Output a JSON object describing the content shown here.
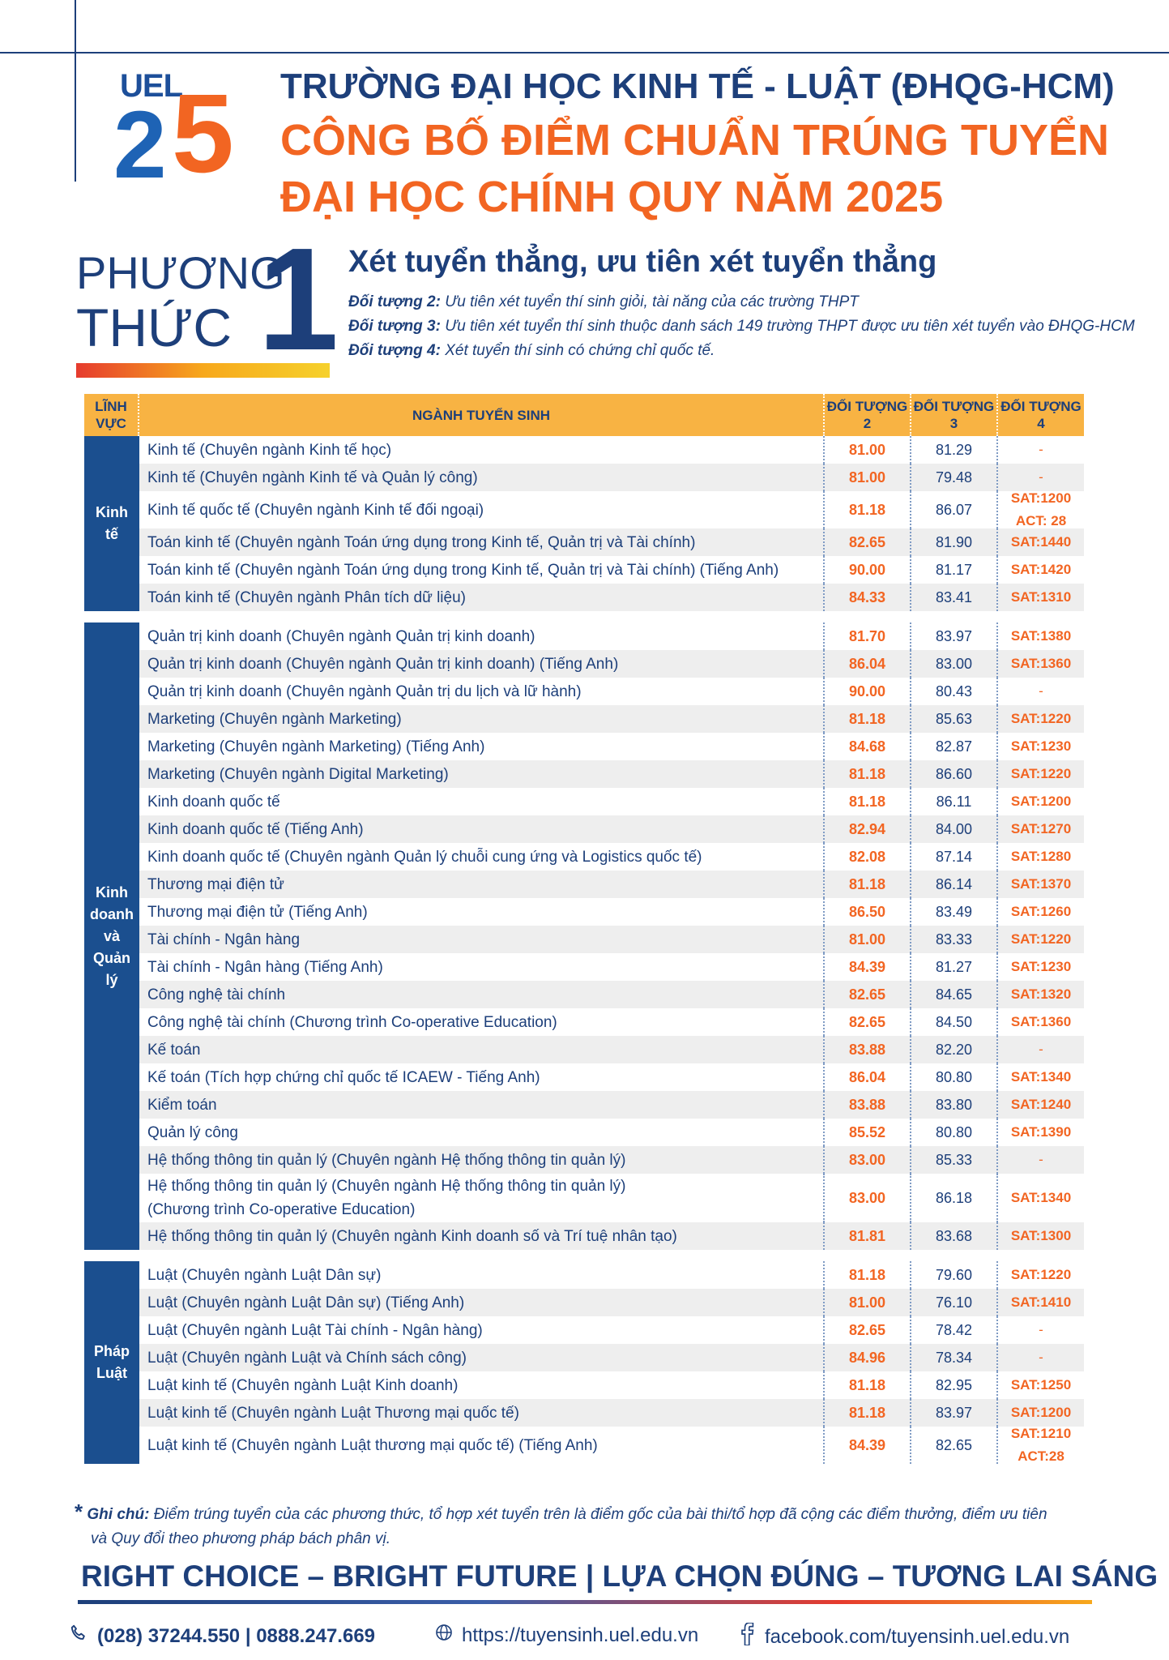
{
  "logo": {
    "text": "UEL",
    "digit_two": "2",
    "digit_five": "5"
  },
  "header": {
    "school_name": "TRƯỜNG ĐẠI HỌC KINH TẾ - LUẬT (ĐHQG-HCM)",
    "announce_line1": "CÔNG BỐ ĐIỂM CHUẨN TRÚNG TUYỂN",
    "announce_line2": "ĐẠI HỌC CHÍNH QUY NĂM 2025"
  },
  "method": {
    "word1": "PHƯƠNG",
    "word2": "THỨC",
    "number": "1",
    "title": "Xét tuyển thẳng, ưu tiên xét tuyển thẳng",
    "objects": [
      {
        "label": "Đối tượng 2:",
        "text": " Ưu tiên xét tuyển thí sinh giỏi, tài năng của các trường THPT"
      },
      {
        "label": "Đối tượng 3:",
        "text": " Ưu tiên xét tuyển thí sinh thuộc danh sách 149 trường THPT được ưu tiên xét tuyển vào ĐHQG-HCM"
      },
      {
        "label": "Đối tượng 4:",
        "text": " Xét tuyển thí sinh có chứng chỉ quốc tế."
      }
    ]
  },
  "table": {
    "headers": {
      "field": "LĨNH VỰC",
      "name": "NGÀNH TUYỂN SINH",
      "o2": "ĐỐI TƯỢNG 2",
      "o3": "ĐỐI TƯỢNG 3",
      "o4": "ĐỐI TƯỢNG 4"
    },
    "groups": [
      {
        "field": "Kinh tế",
        "rows": [
          {
            "name": "Kinh tế (Chuyên ngành Kinh tế học)",
            "o2": "81.00",
            "o3": "81.29",
            "o4": "-"
          },
          {
            "name": "Kinh tế (Chuyên ngành Kinh tế và Quản lý công)",
            "o2": "81.00",
            "o3": "79.48",
            "o4": "-"
          },
          {
            "name": "Kinh tế quốc tế (Chuyên ngành Kinh tế đối ngoại)",
            "o2": "81.18",
            "o3": "86.07",
            "o4": "SAT:1200\nACT: 28",
            "size": "tall"
          },
          {
            "name": "Toán kinh tế (Chuyên ngành Toán ứng dụng trong Kinh tế, Quản trị và Tài chính)",
            "o2": "82.65",
            "o3": "81.90",
            "o4": "SAT:1440"
          },
          {
            "name": "Toán kinh tế (Chuyên ngành Toán ứng dụng trong Kinh tế, Quản trị và Tài chính) (Tiếng Anh)",
            "o2": "90.00",
            "o3": "81.17",
            "o4": "SAT:1420"
          },
          {
            "name": "Toán kinh tế (Chuyên ngành Phân tích dữ liệu)",
            "o2": "84.33",
            "o3": "83.41",
            "o4": "SAT:1310"
          }
        ]
      },
      {
        "field": "Kinh doanh và Quản lý",
        "rows": [
          {
            "name": "Quản trị kinh doanh (Chuyên ngành Quản trị kinh doanh)",
            "o2": "81.70",
            "o3": "83.97",
            "o4": "SAT:1380"
          },
          {
            "name": "Quản trị kinh doanh (Chuyên ngành Quản trị kinh doanh) (Tiếng Anh)",
            "o2": "86.04",
            "o3": "83.00",
            "o4": "SAT:1360"
          },
          {
            "name": "Quản trị kinh doanh (Chuyên ngành Quản trị du lịch và lữ hành)",
            "o2": "90.00",
            "o3": "80.43",
            "o4": "-"
          },
          {
            "name": "Marketing (Chuyên ngành Marketing)",
            "o2": "81.18",
            "o3": "85.63",
            "o4": "SAT:1220"
          },
          {
            "name": "Marketing (Chuyên ngành Marketing) (Tiếng Anh)",
            "o2": "84.68",
            "o3": "82.87",
            "o4": "SAT:1230"
          },
          {
            "name": "Marketing (Chuyên ngành Digital Marketing)",
            "o2": "81.18",
            "o3": "86.60",
            "o4": "SAT:1220"
          },
          {
            "name": "Kinh doanh quốc tế",
            "o2": "81.18",
            "o3": "86.11",
            "o4": "SAT:1200"
          },
          {
            "name": "Kinh doanh quốc tế (Tiếng Anh)",
            "o2": "82.94",
            "o3": "84.00",
            "o4": "SAT:1270"
          },
          {
            "name": "Kinh doanh quốc tế (Chuyên ngành Quản lý chuỗi cung ứng và Logistics quốc tế)",
            "o2": "82.08",
            "o3": "87.14",
            "o4": "SAT:1280"
          },
          {
            "name": "Thương mại điện tử",
            "o2": "81.18",
            "o3": "86.14",
            "o4": "SAT:1370"
          },
          {
            "name": "Thương mại điện tử (Tiếng Anh)",
            "o2": "86.50",
            "o3": "83.49",
            "o4": "SAT:1260"
          },
          {
            "name": "Tài chính - Ngân hàng",
            "o2": "81.00",
            "o3": "83.33",
            "o4": "SAT:1220"
          },
          {
            "name": "Tài chính - Ngân hàng (Tiếng Anh)",
            "o2": "84.39",
            "o3": "81.27",
            "o4": "SAT:1230"
          },
          {
            "name": "Công nghệ tài chính",
            "o2": "82.65",
            "o3": "84.65",
            "o4": "SAT:1320"
          },
          {
            "name": "Công nghệ tài chính (Chương trình Co-operative Education)",
            "o2": "82.65",
            "o3": "84.50",
            "o4": "SAT:1360"
          },
          {
            "name": "Kế toán",
            "o2": "83.88",
            "o3": "82.20",
            "o4": "-"
          },
          {
            "name": "Kế toán (Tích hợp chứng chỉ quốc tế ICAEW - Tiếng Anh)",
            "o2": "86.04",
            "o3": "80.80",
            "o4": "SAT:1340"
          },
          {
            "name": "Kiểm toán",
            "o2": "83.88",
            "o3": "83.80",
            "o4": "SAT:1240"
          },
          {
            "name": "Quản lý công",
            "o2": "85.52",
            "o3": "80.80",
            "o4": "SAT:1390"
          },
          {
            "name": "Hệ thống thông tin quản lý (Chuyên ngành Hệ thống thông tin quản lý)",
            "o2": "83.00",
            "o3": "85.33",
            "o4": "-"
          },
          {
            "name": "Hệ thống thông tin quản lý (Chuyên ngành Hệ thống thông tin quản lý)\n(Chương trình Co-operative Education)",
            "o2": "83.00",
            "o3": "86.18",
            "o4": "SAT:1340",
            "size": "xtall"
          },
          {
            "name": "Hệ thống thông tin quản lý (Chuyên ngành Kinh doanh số và Trí tuệ nhân tạo)",
            "o2": "81.81",
            "o3": "83.68",
            "o4": "SAT:1300"
          }
        ]
      },
      {
        "field": "Pháp Luật",
        "rows": [
          {
            "name": "Luật (Chuyên ngành Luật Dân sự)",
            "o2": "81.18",
            "o3": "79.60",
            "o4": "SAT:1220"
          },
          {
            "name": "Luật (Chuyên ngành Luật Dân sự) (Tiếng Anh)",
            "o2": "81.00",
            "o3": "76.10",
            "o4": "SAT:1410"
          },
          {
            "name": "Luật (Chuyên ngành Luật Tài chính - Ngân hàng)",
            "o2": "82.65",
            "o3": "78.42",
            "o4": "-"
          },
          {
            "name": "Luật (Chuyên ngành Luật và Chính sách công)",
            "o2": "84.96",
            "o3": "78.34",
            "o4": "-"
          },
          {
            "name": "Luật kinh tế (Chuyên ngành Luật Kinh doanh)",
            "o2": "81.18",
            "o3": "82.95",
            "o4": "SAT:1250"
          },
          {
            "name": "Luật kinh tế (Chuyên ngành Luật Thương mại quốc tế)",
            "o2": "81.18",
            "o3": "83.97",
            "o4": "SAT:1200"
          },
          {
            "name": "Luật kinh tế (Chuyên ngành Luật thương mại quốc tế) (Tiếng Anh)",
            "o2": "84.39",
            "o3": "82.65",
            "o4": "SAT:1210\nACT:28",
            "size": "tall"
          }
        ]
      }
    ]
  },
  "note": {
    "star": "*",
    "label": "Ghi chú:",
    "line1": " Điểm trúng tuyển của các phương thức, tổ hợp xét tuyển trên là điểm gốc của bài thi/tổ hợp đã cộng các điểm thưởng, điểm ưu tiên",
    "line2": "và Quy đổi theo phương pháp bách phân vị."
  },
  "slogan": "RIGHT CHOICE – BRIGHT FUTURE | LỰA CHỌN ĐÚNG – TƯƠNG LAI SÁNG",
  "contacts": {
    "phone": "(028) 37244.550 | 0888.247.669",
    "website": "https://tuyensinh.uel.edu.vn",
    "facebook": "facebook.com/tuyensinh.uel.edu.vn"
  },
  "colors": {
    "navy": "#1d3f7a",
    "orange": "#f26522",
    "header_yellow": "#f8b343",
    "field_blue": "#1b4f8f",
    "row_alt": "#eeeeee"
  }
}
